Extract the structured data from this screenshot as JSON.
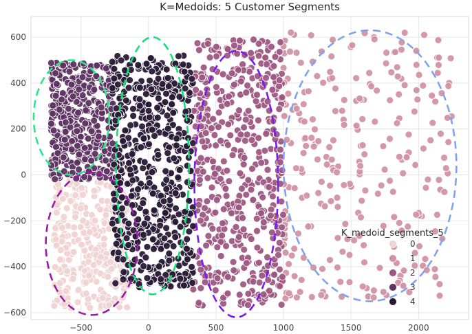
{
  "chart_data": {
    "type": "scatter",
    "title": "K=Medoids: 5 Customer Segments",
    "xlabel": "",
    "ylabel": "",
    "xlim": [
      -870,
      2370
    ],
    "ylim": [
      -630,
      690
    ],
    "x_ticks": [
      -500,
      0,
      500,
      1000,
      1500,
      2000
    ],
    "y_ticks": [
      -600,
      -400,
      -200,
      0,
      200,
      400,
      600
    ],
    "x_tick_labels": [
      "−500",
      "0",
      "500",
      "1000",
      "1500",
      "2000"
    ],
    "y_tick_labels": [
      "−600",
      "−400",
      "−200",
      "0",
      "200",
      "400",
      "600"
    ],
    "grid": true,
    "legend": {
      "title": "K_medoid_segments_5",
      "position": "lower-right",
      "entries": [
        "0",
        "1",
        "2",
        "3",
        "4"
      ]
    },
    "colors": [
      "#f0d3d3",
      "#d193a4",
      "#9e5883",
      "#5e3462",
      "#291a36"
    ],
    "series": [
      {
        "name": "0",
        "cluster_x_range": [
          -700,
          -150
        ],
        "cluster_y_range": [
          -580,
          -10
        ],
        "approx_count": 320
      },
      {
        "name": "1",
        "cluster_x_range": [
          1000,
          2250
        ],
        "cluster_y_range": [
          -540,
          630
        ],
        "approx_count": 260
      },
      {
        "name": "2",
        "cluster_x_range": [
          330,
          1000
        ],
        "cluster_y_range": [
          -570,
          590
        ],
        "approx_count": 520
      },
      {
        "name": "3",
        "cluster_x_range": [
          -720,
          -250
        ],
        "cluster_y_range": [
          -20,
          490
        ],
        "approx_count": 420
      },
      {
        "name": "4",
        "cluster_x_range": [
          -270,
          330
        ],
        "cluster_y_range": [
          -490,
          520
        ],
        "approx_count": 620
      }
    ],
    "annotations": [
      {
        "type": "ellipse",
        "color": "#2ee68a",
        "dash": "dashed",
        "center": [
          -570,
          250
        ],
        "radius": [
          280,
          250
        ]
      },
      {
        "type": "ellipse",
        "color": "#9a1aa8",
        "dash": "dashed",
        "center": [
          -420,
          -300
        ],
        "radius": [
          340,
          310
        ]
      },
      {
        "type": "ellipse",
        "color": "#12e07a",
        "dash": "dashed",
        "center": [
          30,
          40
        ],
        "radius": [
          270,
          560
        ]
      },
      {
        "type": "ellipse",
        "color": "#7a1af0",
        "dash": "dashed",
        "center": [
          650,
          -40
        ],
        "radius": [
          310,
          580
        ]
      },
      {
        "type": "ellipse",
        "color": "#7fa3f0",
        "dash": "dashed",
        "center": [
          1640,
          40
        ],
        "radius": [
          640,
          590
        ]
      }
    ]
  }
}
